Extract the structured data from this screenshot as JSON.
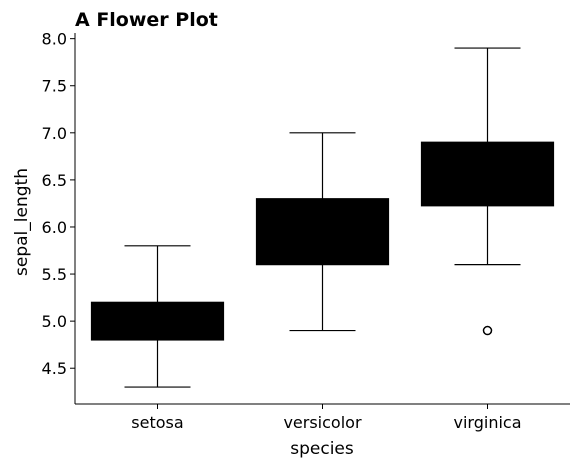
{
  "chart_data": {
    "type": "box",
    "title": "A Flower Plot",
    "xlabel": "species",
    "ylabel": "sepal_length",
    "ylim": [
      4.12,
      8.06
    ],
    "yticks": [
      "4.5",
      "5.0",
      "5.5",
      "6.0",
      "6.5",
      "7.0",
      "7.5",
      "8.0"
    ],
    "grid": false,
    "categories": [
      "setosa",
      "versicolor",
      "virginica"
    ],
    "boxes": [
      {
        "category": "setosa",
        "whisker_low": 4.3,
        "q1": 4.8,
        "median": 5.0,
        "q3": 5.2,
        "whisker_high": 5.8,
        "outliers": []
      },
      {
        "category": "versicolor",
        "whisker_low": 4.9,
        "q1": 5.6,
        "median": 5.9,
        "q3": 6.3,
        "whisker_high": 7.0,
        "outliers": []
      },
      {
        "category": "virginica",
        "whisker_low": 5.6,
        "q1": 6.225,
        "median": 6.5,
        "q3": 6.9,
        "whisker_high": 7.9,
        "outliers": [
          4.9
        ]
      }
    ],
    "colors": {
      "box_fill": "#000000",
      "line": "#000000",
      "outlier_fill": "#ffffff"
    }
  }
}
